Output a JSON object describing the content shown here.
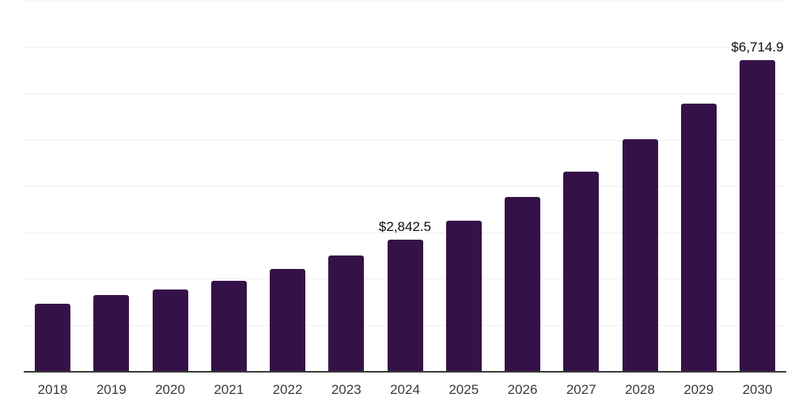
{
  "chart_data": {
    "type": "bar",
    "title": "",
    "xlabel": "",
    "ylabel": "",
    "categories": [
      "2018",
      "2019",
      "2020",
      "2021",
      "2022",
      "2023",
      "2024",
      "2025",
      "2026",
      "2027",
      "2028",
      "2029",
      "2030"
    ],
    "values": [
      1455,
      1640,
      1765,
      1955,
      2200,
      2495,
      2842.5,
      3250,
      3760,
      4300,
      5010,
      5780,
      6714.9
    ],
    "data_labels": [
      "",
      "",
      "",
      "",
      "",
      "",
      "$2,842.5",
      "",
      "",
      "",
      "",
      "",
      "$6,714.9"
    ],
    "ylim": [
      0,
      8000
    ],
    "gridline_interval": 1000,
    "grid_visible": true,
    "legend_position": "none",
    "colors": {
      "bar": "#35114A",
      "gridline": "#efefef",
      "axis_line": "#3b3b3b",
      "x_label": "#3a3a3a",
      "data_label": "#0d0d0d",
      "background": "#ffffff"
    }
  }
}
